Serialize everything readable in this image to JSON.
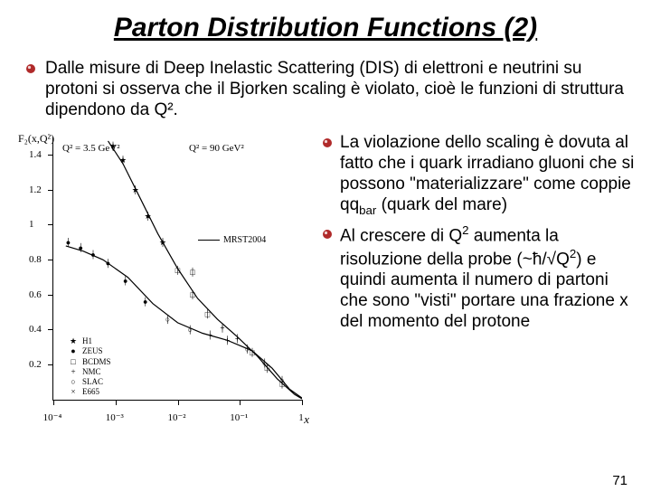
{
  "title": "Parton Distribution Functions (2)",
  "intro_text": "Dalle misure di Deep Inelastic Scattering (DIS) di elettroni e neutrini su protoni si osserva che il Bjorken scaling è violato, cioè le funzioni di struttura dipendono da Q².",
  "bullets": {
    "b1": "La violazione dello scaling è dovuta al fatto che i quark irradiano gluoni che si possono \"materializzare\" come coppie qq",
    "b1_sub": "bar",
    "b1_tail": " (quark del mare)",
    "b2_a": "Al crescere di Q",
    "b2_b": " aumenta la risoluzione della probe (~ħ/√Q",
    "b2_c": ") e quindi aumenta il numero di partoni che sono \"visti\" portare una frazione x del momento del protone"
  },
  "page_number": "71",
  "chart": {
    "type": "scatter",
    "ylabel": "F₂(x,Q²)",
    "xlabel": "x",
    "annot_left": "Q² = 3.5 GeV²",
    "annot_right": "Q² = 90 GeV²",
    "legend_label": "MRST2004",
    "y_ticks": [
      {
        "v": 0.2,
        "label": "0.2"
      },
      {
        "v": 0.4,
        "label": "0.4"
      },
      {
        "v": 0.6,
        "label": "0.6"
      },
      {
        "v": 0.8,
        "label": "0.8"
      },
      {
        "v": 1.0,
        "label": "1"
      },
      {
        "v": 1.2,
        "label": "1.2"
      },
      {
        "v": 1.4,
        "label": "1.4"
      }
    ],
    "x_ticks": [
      {
        "pos": 0,
        "label": "10⁻⁴"
      },
      {
        "pos": 0.25,
        "label": "10⁻³"
      },
      {
        "pos": 0.5,
        "label": "10⁻²"
      },
      {
        "pos": 0.75,
        "label": "10⁻¹"
      },
      {
        "pos": 1.0,
        "label": "1"
      }
    ],
    "y_min": 0,
    "y_max": 1.5,
    "curve_low": [
      {
        "x": 0.05,
        "y": 0.88
      },
      {
        "x": 0.12,
        "y": 0.85
      },
      {
        "x": 0.2,
        "y": 0.8
      },
      {
        "x": 0.3,
        "y": 0.7
      },
      {
        "x": 0.4,
        "y": 0.55
      },
      {
        "x": 0.5,
        "y": 0.44
      },
      {
        "x": 0.6,
        "y": 0.38
      },
      {
        "x": 0.7,
        "y": 0.34
      },
      {
        "x": 0.8,
        "y": 0.28
      },
      {
        "x": 0.88,
        "y": 0.18
      },
      {
        "x": 0.95,
        "y": 0.06
      },
      {
        "x": 1.0,
        "y": 0.01
      }
    ],
    "curve_high": [
      {
        "x": 0.22,
        "y": 1.48
      },
      {
        "x": 0.28,
        "y": 1.35
      },
      {
        "x": 0.35,
        "y": 1.15
      },
      {
        "x": 0.42,
        "y": 0.95
      },
      {
        "x": 0.5,
        "y": 0.75
      },
      {
        "x": 0.58,
        "y": 0.58
      },
      {
        "x": 0.66,
        "y": 0.46
      },
      {
        "x": 0.74,
        "y": 0.36
      },
      {
        "x": 0.82,
        "y": 0.25
      },
      {
        "x": 0.9,
        "y": 0.12
      },
      {
        "x": 0.97,
        "y": 0.03
      },
      {
        "x": 1.0,
        "y": 0.005
      }
    ],
    "points_low": [
      {
        "x": 0.06,
        "y": 0.9,
        "m": "●"
      },
      {
        "x": 0.11,
        "y": 0.87,
        "m": "●"
      },
      {
        "x": 0.16,
        "y": 0.83,
        "m": "●"
      },
      {
        "x": 0.22,
        "y": 0.78,
        "m": "●"
      },
      {
        "x": 0.29,
        "y": 0.68,
        "m": "●"
      },
      {
        "x": 0.37,
        "y": 0.56,
        "m": "●"
      },
      {
        "x": 0.46,
        "y": 0.46,
        "m": "○"
      },
      {
        "x": 0.55,
        "y": 0.4,
        "m": "○"
      },
      {
        "x": 0.63,
        "y": 0.37,
        "m": "+"
      },
      {
        "x": 0.7,
        "y": 0.34,
        "m": "+"
      },
      {
        "x": 0.78,
        "y": 0.29,
        "m": "○"
      },
      {
        "x": 0.85,
        "y": 0.21,
        "m": "○"
      },
      {
        "x": 0.92,
        "y": 0.11,
        "m": "○"
      }
    ],
    "points_high": [
      {
        "x": 0.24,
        "y": 1.45,
        "m": "★"
      },
      {
        "x": 0.28,
        "y": 1.37,
        "m": "★"
      },
      {
        "x": 0.33,
        "y": 1.2,
        "m": "★"
      },
      {
        "x": 0.38,
        "y": 1.05,
        "m": "★"
      },
      {
        "x": 0.44,
        "y": 0.9,
        "m": "★"
      },
      {
        "x": 0.5,
        "y": 0.74,
        "m": "□"
      },
      {
        "x": 0.56,
        "y": 0.6,
        "m": "□"
      },
      {
        "x": 0.56,
        "y": 0.73,
        "m": "□"
      },
      {
        "x": 0.62,
        "y": 0.49,
        "m": "□"
      },
      {
        "x": 0.68,
        "y": 0.41,
        "m": "+"
      },
      {
        "x": 0.74,
        "y": 0.35,
        "m": "+"
      },
      {
        "x": 0.8,
        "y": 0.27,
        "m": "□"
      },
      {
        "x": 0.86,
        "y": 0.18,
        "m": "□"
      },
      {
        "x": 0.92,
        "y": 0.09,
        "m": "□"
      }
    ],
    "legend": [
      {
        "sym": "★",
        "label": "H1"
      },
      {
        "sym": "●",
        "label": "ZEUS"
      },
      {
        "sym": "□",
        "label": "BCDMS"
      },
      {
        "sym": "+",
        "label": "NMC"
      },
      {
        "sym": "○",
        "label": "SLAC"
      },
      {
        "sym": "×",
        "label": "E665"
      }
    ],
    "colors": {
      "line": "#000000",
      "point": "#000000",
      "bg": "#ffffff"
    }
  }
}
